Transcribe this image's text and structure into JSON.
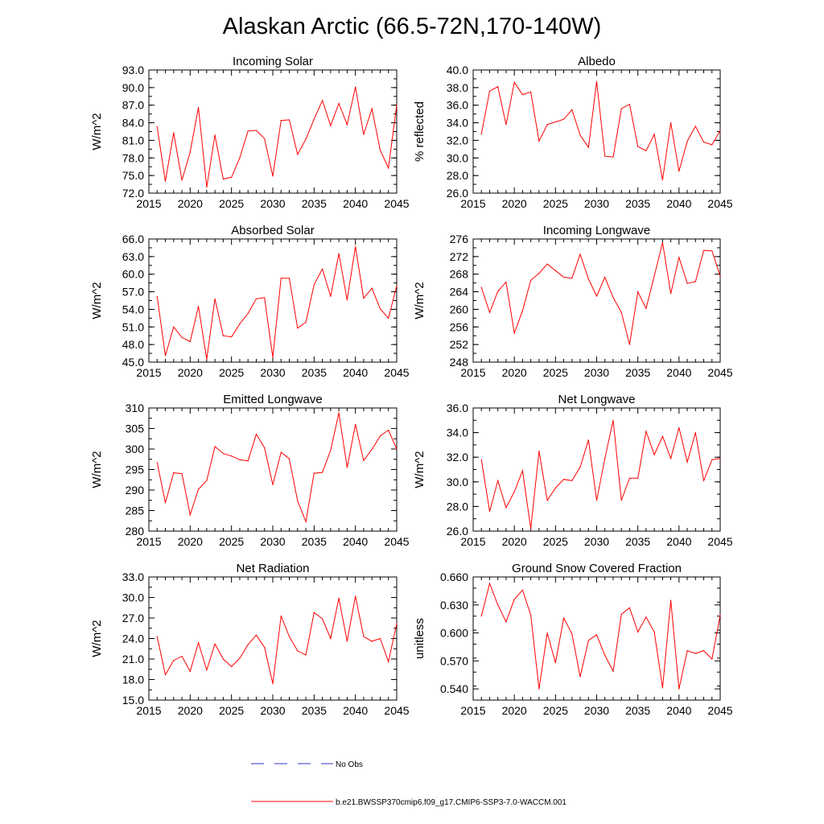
{
  "figure": {
    "title": "Alaskan Arctic (66.5-72N,170-140W)",
    "line_color": "#ff0000",
    "obs_color": "#3333cc"
  },
  "legend": {
    "obs_label": "No Obs",
    "model_label": "b.e21.BWSSP370cmip6.f09_g17.CMIP6-SSP3-7.0-WACCM.001"
  },
  "chart_data": [
    {
      "type": "line",
      "title": "Incoming Solar",
      "xlabel": "",
      "ylabel": "W/m^2",
      "xlim": [
        2015,
        2045
      ],
      "ylim": [
        72,
        93
      ],
      "xticks": [
        "2015",
        "2020",
        "2025",
        "2030",
        "2035",
        "2040",
        "2045"
      ],
      "yticks": [
        "72.0",
        "75.0",
        "78.0",
        "81.0",
        "84.0",
        "87.0",
        "90.0",
        "93.0"
      ],
      "x": [
        2016,
        2017,
        2018,
        2019,
        2020,
        2021,
        2022,
        2023,
        2024,
        2025,
        2026,
        2027,
        2028,
        2029,
        2030,
        2031,
        2032,
        2033,
        2034,
        2035,
        2036,
        2037,
        2038,
        2039,
        2040,
        2041,
        2042,
        2043,
        2044,
        2045
      ],
      "values": [
        83.3,
        74.0,
        82.3,
        74.2,
        79.0,
        86.6,
        73.0,
        81.9,
        74.4,
        74.7,
        78.0,
        82.6,
        82.7,
        81.3,
        74.9,
        84.4,
        84.5,
        78.6,
        81.2,
        84.6,
        87.8,
        83.5,
        87.3,
        83.7,
        90.1,
        82.0,
        86.4,
        79.3,
        76.3,
        87.0
      ]
    },
    {
      "type": "line",
      "title": "Albedo",
      "xlabel": "",
      "ylabel": "% reflected",
      "xlim": [
        2015,
        2045
      ],
      "ylim": [
        26,
        40
      ],
      "xticks": [
        "2015",
        "2020",
        "2025",
        "2030",
        "2035",
        "2040",
        "2045"
      ],
      "yticks": [
        "26.0",
        "28.0",
        "30.0",
        "32.0",
        "34.0",
        "36.0",
        "38.0",
        "40.0"
      ],
      "x": [
        2016,
        2017,
        2018,
        2019,
        2020,
        2021,
        2022,
        2023,
        2024,
        2025,
        2026,
        2027,
        2028,
        2029,
        2030,
        2031,
        2032,
        2033,
        2034,
        2035,
        2036,
        2037,
        2038,
        2039,
        2040,
        2041,
        2042,
        2043,
        2044,
        2045
      ],
      "values": [
        32.7,
        37.6,
        38.1,
        33.8,
        38.6,
        37.2,
        37.5,
        31.9,
        33.8,
        34.1,
        34.4,
        35.5,
        32.6,
        31.2,
        38.7,
        30.2,
        30.1,
        35.6,
        36.1,
        31.3,
        30.8,
        32.7,
        27.5,
        34.0,
        28.5,
        31.9,
        33.6,
        31.8,
        31.5,
        33.1
      ]
    },
    {
      "type": "line",
      "title": "Absorbed Solar",
      "xlabel": "",
      "ylabel": "W/m^2",
      "xlim": [
        2015,
        2045
      ],
      "ylim": [
        45,
        66
      ],
      "xticks": [
        "2015",
        "2020",
        "2025",
        "2030",
        "2035",
        "2040",
        "2045"
      ],
      "yticks": [
        "45.0",
        "48.0",
        "51.0",
        "54.0",
        "57.0",
        "60.0",
        "63.0",
        "66.0"
      ],
      "x": [
        2016,
        2017,
        2018,
        2019,
        2020,
        2021,
        2022,
        2023,
        2024,
        2025,
        2026,
        2027,
        2028,
        2029,
        2030,
        2031,
        2032,
        2033,
        2034,
        2035,
        2036,
        2037,
        2038,
        2039,
        2040,
        2041,
        2042,
        2043,
        2044,
        2045
      ],
      "values": [
        56.2,
        46.1,
        51.0,
        49.2,
        48.5,
        54.5,
        45.5,
        55.8,
        49.5,
        49.3,
        51.5,
        53.3,
        55.8,
        56.0,
        45.8,
        59.3,
        59.3,
        50.8,
        51.8,
        58.2,
        60.9,
        56.2,
        63.5,
        55.6,
        64.7,
        55.9,
        57.6,
        54.1,
        52.5,
        58.0
      ]
    },
    {
      "type": "line",
      "title": "Incoming Longwave",
      "xlabel": "",
      "ylabel": "W/m^2",
      "xlim": [
        2015,
        2045
      ],
      "ylim": [
        248,
        276
      ],
      "xticks": [
        "2015",
        "2020",
        "2025",
        "2030",
        "2035",
        "2040",
        "2045"
      ],
      "yticks": [
        "248",
        "252",
        "256",
        "260",
        "264",
        "268",
        "272",
        "276"
      ],
      "x": [
        2016,
        2017,
        2018,
        2019,
        2020,
        2021,
        2022,
        2023,
        2024,
        2025,
        2026,
        2027,
        2028,
        2029,
        2030,
        2031,
        2032,
        2033,
        2034,
        2035,
        2036,
        2037,
        2038,
        2039,
        2040,
        2041,
        2042,
        2043,
        2044,
        2045
      ],
      "values": [
        265.0,
        259.3,
        264.1,
        266.2,
        254.6,
        259.7,
        266.6,
        268.2,
        270.3,
        268.8,
        267.3,
        267.1,
        272.5,
        266.9,
        263.0,
        267.3,
        262.7,
        259.3,
        252.0,
        264.0,
        260.2,
        267.6,
        275.2,
        263.6,
        271.8,
        265.9,
        266.3,
        273.4,
        273.3,
        267.6
      ]
    },
    {
      "type": "line",
      "title": "Emitted Longwave",
      "xlabel": "",
      "ylabel": "W/m^2",
      "xlim": [
        2015,
        2045
      ],
      "ylim": [
        280,
        310
      ],
      "xticks": [
        "2015",
        "2020",
        "2025",
        "2030",
        "2035",
        "2040",
        "2045"
      ],
      "yticks": [
        "280",
        "285",
        "290",
        "295",
        "300",
        "305",
        "310"
      ],
      "x": [
        2016,
        2017,
        2018,
        2019,
        2020,
        2021,
        2022,
        2023,
        2024,
        2025,
        2026,
        2027,
        2028,
        2029,
        2030,
        2031,
        2032,
        2033,
        2034,
        2035,
        2036,
        2037,
        2038,
        2039,
        2040,
        2041,
        2042,
        2043,
        2044,
        2045
      ],
      "values": [
        296.7,
        286.9,
        294.2,
        294.0,
        284.0,
        290.2,
        292.3,
        300.6,
        298.9,
        298.3,
        297.4,
        297.1,
        303.6,
        300.3,
        291.3,
        299.2,
        297.6,
        287.4,
        282.3,
        294.1,
        294.3,
        299.7,
        308.8,
        295.5,
        306.0,
        297.2,
        299.9,
        303.2,
        304.6,
        300.0
      ]
    },
    {
      "type": "line",
      "title": "Net Longwave",
      "xlabel": "",
      "ylabel": "W/m^2",
      "xlim": [
        2015,
        2045
      ],
      "ylim": [
        26,
        36
      ],
      "xticks": [
        "2015",
        "2020",
        "2025",
        "2030",
        "2035",
        "2040",
        "2045"
      ],
      "yticks": [
        "26.0",
        "28.0",
        "30.0",
        "32.0",
        "34.0",
        "36.0"
      ],
      "x": [
        2016,
        2017,
        2018,
        2019,
        2020,
        2021,
        2022,
        2023,
        2024,
        2025,
        2026,
        2027,
        2028,
        2029,
        2030,
        2031,
        2032,
        2033,
        2034,
        2035,
        2036,
        2037,
        2038,
        2039,
        2040,
        2041,
        2042,
        2043,
        2044,
        2045
      ],
      "values": [
        31.8,
        27.6,
        30.1,
        27.9,
        29.2,
        30.9,
        26.2,
        32.5,
        28.5,
        29.5,
        30.2,
        30.1,
        31.2,
        33.4,
        28.5,
        31.9,
        35.0,
        28.5,
        30.3,
        30.3,
        34.1,
        32.2,
        33.7,
        31.9,
        34.4,
        31.6,
        34.0,
        30.1,
        31.8,
        31.9
      ]
    },
    {
      "type": "line",
      "title": "Net Radiation",
      "xlabel": "",
      "ylabel": "W/m^2",
      "xlim": [
        2015,
        2045
      ],
      "ylim": [
        15,
        33
      ],
      "xticks": [
        "2015",
        "2020",
        "2025",
        "2030",
        "2035",
        "2040",
        "2045"
      ],
      "yticks": [
        "15.0",
        "18.0",
        "21.0",
        "24.0",
        "27.0",
        "30.0",
        "33.0"
      ],
      "x": [
        2016,
        2017,
        2018,
        2019,
        2020,
        2021,
        2022,
        2023,
        2024,
        2025,
        2026,
        2027,
        2028,
        2029,
        2030,
        2031,
        2032,
        2033,
        2034,
        2035,
        2036,
        2037,
        2038,
        2039,
        2040,
        2041,
        2042,
        2043,
        2044,
        2045
      ],
      "values": [
        24.3,
        18.7,
        20.8,
        21.4,
        19.2,
        23.4,
        19.4,
        23.2,
        21.0,
        19.9,
        21.1,
        23.1,
        24.5,
        22.7,
        17.4,
        27.3,
        24.3,
        22.2,
        21.6,
        27.8,
        26.9,
        24.0,
        29.9,
        23.6,
        30.2,
        24.3,
        23.6,
        24.0,
        20.6,
        26.2
      ]
    },
    {
      "type": "line",
      "title": "Ground Snow Covered Fraction",
      "xlabel": "",
      "ylabel": "unitless",
      "xlim": [
        2015,
        2045
      ],
      "ylim": [
        0.528,
        0.66
      ],
      "xticks": [
        "2015",
        "2020",
        "2025",
        "2030",
        "2035",
        "2040",
        "2045"
      ],
      "yticks": [
        "0.540",
        "0.570",
        "0.600",
        "0.630",
        "0.660"
      ],
      "x": [
        2016,
        2017,
        2018,
        2019,
        2020,
        2021,
        2022,
        2023,
        2024,
        2025,
        2026,
        2027,
        2028,
        2029,
        2030,
        2031,
        2032,
        2033,
        2034,
        2035,
        2036,
        2037,
        2038,
        2039,
        2040,
        2041,
        2042,
        2043,
        2044,
        2045
      ],
      "values": [
        0.618,
        0.653,
        0.63,
        0.612,
        0.636,
        0.646,
        0.619,
        0.54,
        0.6,
        0.568,
        0.616,
        0.599,
        0.553,
        0.592,
        0.598,
        0.576,
        0.559,
        0.62,
        0.627,
        0.601,
        0.617,
        0.601,
        0.541,
        0.635,
        0.54,
        0.581,
        0.578,
        0.581,
        0.572,
        0.619
      ]
    }
  ]
}
